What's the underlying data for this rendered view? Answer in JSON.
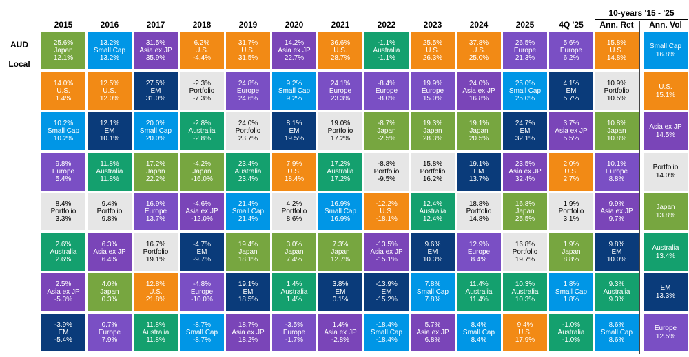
{
  "chart_data": {
    "type": "table",
    "row_labels": [
      "AUD",
      "Local"
    ],
    "columns": [
      "2015",
      "2016",
      "2017",
      "2018",
      "2019",
      "2020",
      "2021",
      "2022",
      "2023",
      "2024",
      "2025",
      "4Q '25"
    ],
    "summary_group_title": "10-years '15 - '25",
    "summary_columns": [
      "Ann. Ret",
      "Ann. Vol"
    ],
    "colors": {
      "Japan": "#77a640",
      "Small Cap": "#0096e6",
      "Asia ex JP": "#7a45b8",
      "U.S.": "#f28a15",
      "Australia": "#14a06e",
      "Europe": "#7a4fc4",
      "Portfolio": "#e6e6e6",
      "EM": "#0a3b7a"
    },
    "years": [
      [
        {
          "name": "Japan",
          "aud": "25.6%",
          "local": "12.1%"
        },
        {
          "name": "U.S.",
          "aud": "14.0%",
          "local": "1.4%"
        },
        {
          "name": "Small Cap",
          "aud": "10.2%",
          "local": "10.2%"
        },
        {
          "name": "Europe",
          "aud": "9.8%",
          "local": "5.4%"
        },
        {
          "name": "Portfolio",
          "aud": "8.4%",
          "local": "3.3%"
        },
        {
          "name": "Australia",
          "aud": "2.6%",
          "local": "2.6%"
        },
        {
          "name": "Asia ex JP",
          "aud": "2.5%",
          "local": "-5.3%"
        },
        {
          "name": "EM",
          "aud": "-3.9%",
          "local": "-5.4%"
        }
      ],
      [
        {
          "name": "Small Cap",
          "aud": "13.2%",
          "local": "13.2%"
        },
        {
          "name": "U.S.",
          "aud": "12.5%",
          "local": "12.0%"
        },
        {
          "name": "EM",
          "aud": "12.1%",
          "local": "10.1%"
        },
        {
          "name": "Australia",
          "aud": "11.8%",
          "local": "11.8%"
        },
        {
          "name": "Portfolio",
          "aud": "9.4%",
          "local": "9.8%"
        },
        {
          "name": "Asia ex JP",
          "aud": "6.3%",
          "local": "6.4%"
        },
        {
          "name": "Japan",
          "aud": "4.0%",
          "local": "0.3%"
        },
        {
          "name": "Europe",
          "aud": "0.7%",
          "local": "7.9%"
        }
      ],
      [
        {
          "name": "Asia ex JP",
          "aud": "31.5%",
          "local": "35.9%"
        },
        {
          "name": "EM",
          "aud": "27.5%",
          "local": "31.0%"
        },
        {
          "name": "Small Cap",
          "aud": "20.0%",
          "local": "20.0%"
        },
        {
          "name": "Japan",
          "aud": "17.2%",
          "local": "22.2%"
        },
        {
          "name": "Europe",
          "aud": "16.9%",
          "local": "13.7%"
        },
        {
          "name": "Portfolio",
          "aud": "16.7%",
          "local": "19.1%"
        },
        {
          "name": "U.S.",
          "aud": "12.8%",
          "local": "21.8%"
        },
        {
          "name": "Australia",
          "aud": "11.8%",
          "local": "11.8%"
        }
      ],
      [
        {
          "name": "U.S.",
          "aud": "6.2%",
          "local": "-4.4%"
        },
        {
          "name": "Portfolio",
          "aud": "-2.3%",
          "local": "-7.3%"
        },
        {
          "name": "Australia",
          "aud": "-2.8%",
          "local": "-2.8%"
        },
        {
          "name": "Japan",
          "aud": "-4.2%",
          "local": "-16.0%"
        },
        {
          "name": "Asia ex JP",
          "aud": "-4.6%",
          "local": "-12.0%"
        },
        {
          "name": "EM",
          "aud": "-4.7%",
          "local": "-9.7%"
        },
        {
          "name": "Europe",
          "aud": "-4.8%",
          "local": "-10.0%"
        },
        {
          "name": "Small Cap",
          "aud": "-8.7%",
          "local": "-8.7%"
        }
      ],
      [
        {
          "name": "U.S.",
          "aud": "31.7%",
          "local": "31.5%"
        },
        {
          "name": "Europe",
          "aud": "24.8%",
          "local": "24.6%"
        },
        {
          "name": "Portfolio",
          "aud": "24.0%",
          "local": "23.7%"
        },
        {
          "name": "Australia",
          "aud": "23.4%",
          "local": "23.4%"
        },
        {
          "name": "Small Cap",
          "aud": "21.4%",
          "local": "21.4%"
        },
        {
          "name": "Japan",
          "aud": "19.4%",
          "local": "18.1%"
        },
        {
          "name": "EM",
          "aud": "19.1%",
          "local": "18.5%"
        },
        {
          "name": "Asia ex JP",
          "aud": "18.7%",
          "local": "18.2%"
        }
      ],
      [
        {
          "name": "Asia ex JP",
          "aud": "14.2%",
          "local": "22.7%"
        },
        {
          "name": "Small Cap",
          "aud": "9.2%",
          "local": "9.2%"
        },
        {
          "name": "EM",
          "aud": "8.1%",
          "local": "19.5%"
        },
        {
          "name": "U.S.",
          "aud": "7.9%",
          "local": "18.4%"
        },
        {
          "name": "Portfolio",
          "aud": "4.2%",
          "local": "8.6%"
        },
        {
          "name": "Japan",
          "aud": "3.0%",
          "local": "7.4%"
        },
        {
          "name": "Australia",
          "aud": "1.4%",
          "local": "1.4%"
        },
        {
          "name": "Europe",
          "aud": "-3.5%",
          "local": "-1.7%"
        }
      ],
      [
        {
          "name": "U.S.",
          "aud": "36.6%",
          "local": "28.7%"
        },
        {
          "name": "Europe",
          "aud": "24.1%",
          "local": "23.3%"
        },
        {
          "name": "Portfolio",
          "aud": "19.0%",
          "local": "17.2%"
        },
        {
          "name": "Australia",
          "aud": "17.2%",
          "local": "17.2%"
        },
        {
          "name": "Small Cap",
          "aud": "16.9%",
          "local": "16.9%"
        },
        {
          "name": "Japan",
          "aud": "7.3%",
          "local": "12.7%"
        },
        {
          "name": "EM",
          "aud": "3.8%",
          "local": "0.1%"
        },
        {
          "name": "Asia ex JP",
          "aud": "1.4%",
          "local": "-2.8%"
        }
      ],
      [
        {
          "name": "Australia",
          "aud": "-1.1%",
          "local": "-1.1%"
        },
        {
          "name": "Europe",
          "aud": "-8.4%",
          "local": "-8.0%"
        },
        {
          "name": "Japan",
          "aud": "-8.7%",
          "local": "-2.5%"
        },
        {
          "name": "Portfolio",
          "aud": "-8.8%",
          "local": "-9.5%"
        },
        {
          "name": "U.S.",
          "aud": "-12.2%",
          "local": "-18.1%"
        },
        {
          "name": "Asia ex JP",
          "aud": "-13.5%",
          "local": "-15.1%"
        },
        {
          "name": "EM",
          "aud": "-13.9%",
          "local": "-15.2%"
        },
        {
          "name": "Small Cap",
          "aud": "-18.4%",
          "local": "-18.4%"
        }
      ],
      [
        {
          "name": "U.S.",
          "aud": "25.5%",
          "local": "26.3%"
        },
        {
          "name": "Europe",
          "aud": "19.9%",
          "local": "15.0%"
        },
        {
          "name": "Japan",
          "aud": "19.3%",
          "local": "28.3%"
        },
        {
          "name": "Portfolio",
          "aud": "15.8%",
          "local": "16.2%"
        },
        {
          "name": "Australia",
          "aud": "12.4%",
          "local": "12.4%"
        },
        {
          "name": "EM",
          "aud": "9.6%",
          "local": "10.3%"
        },
        {
          "name": "Small Cap",
          "aud": "7.8%",
          "local": "7.8%"
        },
        {
          "name": "Asia ex JP",
          "aud": "5.7%",
          "local": "6.8%"
        }
      ],
      [
        {
          "name": "U.S.",
          "aud": "37.8%",
          "local": "25.0%"
        },
        {
          "name": "Asia ex JP",
          "aud": "24.0%",
          "local": "16.8%"
        },
        {
          "name": "Japan",
          "aud": "19.1%",
          "local": "20.5%"
        },
        {
          "name": "EM",
          "aud": "19.1%",
          "local": "13.7%"
        },
        {
          "name": "Portfolio",
          "aud": "18.8%",
          "local": "14.8%"
        },
        {
          "name": "Europe",
          "aud": "12.9%",
          "local": "8.4%"
        },
        {
          "name": "Australia",
          "aud": "11.4%",
          "local": "11.4%"
        },
        {
          "name": "Small Cap",
          "aud": "8.4%",
          "local": "8.4%"
        }
      ],
      [
        {
          "name": "Europe",
          "aud": "26.5%",
          "local": "21.3%"
        },
        {
          "name": "Small Cap",
          "aud": "25.0%",
          "local": "25.0%"
        },
        {
          "name": "EM",
          "aud": "24.7%",
          "local": "32.1%"
        },
        {
          "name": "Asia ex JP",
          "aud": "23.5%",
          "local": "32.4%"
        },
        {
          "name": "Japan",
          "aud": "16.8%",
          "local": "25.5%"
        },
        {
          "name": "Portfolio",
          "aud": "16.8%",
          "local": "19.7%"
        },
        {
          "name": "Australia",
          "aud": "10.3%",
          "local": "10.3%"
        },
        {
          "name": "U.S.",
          "aud": "9.4%",
          "local": "17.9%"
        }
      ],
      [
        {
          "name": "Europe",
          "aud": "5.6%",
          "local": "6.2%"
        },
        {
          "name": "EM",
          "aud": "4.1%",
          "local": "5.7%"
        },
        {
          "name": "Asia ex JP",
          "aud": "3.7%",
          "local": "5.5%"
        },
        {
          "name": "U.S.",
          "aud": "2.0%",
          "local": "2.7%"
        },
        {
          "name": "Portfolio",
          "aud": "1.9%",
          "local": "3.1%"
        },
        {
          "name": "Japan",
          "aud": "1.9%",
          "local": "8.8%"
        },
        {
          "name": "Small Cap",
          "aud": "1.8%",
          "local": "1.8%"
        },
        {
          "name": "Australia",
          "aud": "-1.0%",
          "local": "-1.0%"
        }
      ]
    ],
    "ann_ret": [
      {
        "name": "U.S.",
        "aud": "15.8%",
        "local": "14.8%"
      },
      {
        "name": "Portfolio",
        "aud": "10.9%",
        "local": "10.5%"
      },
      {
        "name": "Japan",
        "aud": "10.8%",
        "local": "10.8%"
      },
      {
        "name": "Europe",
        "aud": "10.1%",
        "local": "8.8%"
      },
      {
        "name": "Asia ex JP",
        "aud": "9.9%",
        "local": "9.7%"
      },
      {
        "name": "EM",
        "aud": "9.8%",
        "local": "10.0%"
      },
      {
        "name": "Australia",
        "aud": "9.3%",
        "local": "9.3%"
      },
      {
        "name": "Small Cap",
        "aud": "8.6%",
        "local": "8.6%"
      }
    ],
    "ann_vol": [
      {
        "name": "Small Cap",
        "value": "16.8%"
      },
      {
        "name": "U.S.",
        "value": "15.1%"
      },
      {
        "name": "Asia ex JP",
        "value": "14.5%"
      },
      {
        "name": "Portfolio",
        "value": "14.0%"
      },
      {
        "name": "Japan",
        "value": "13.8%"
      },
      {
        "name": "Australia",
        "value": "13.4%"
      },
      {
        "name": "EM",
        "value": "13.3%"
      },
      {
        "name": "Europe",
        "value": "12.5%"
      }
    ]
  }
}
